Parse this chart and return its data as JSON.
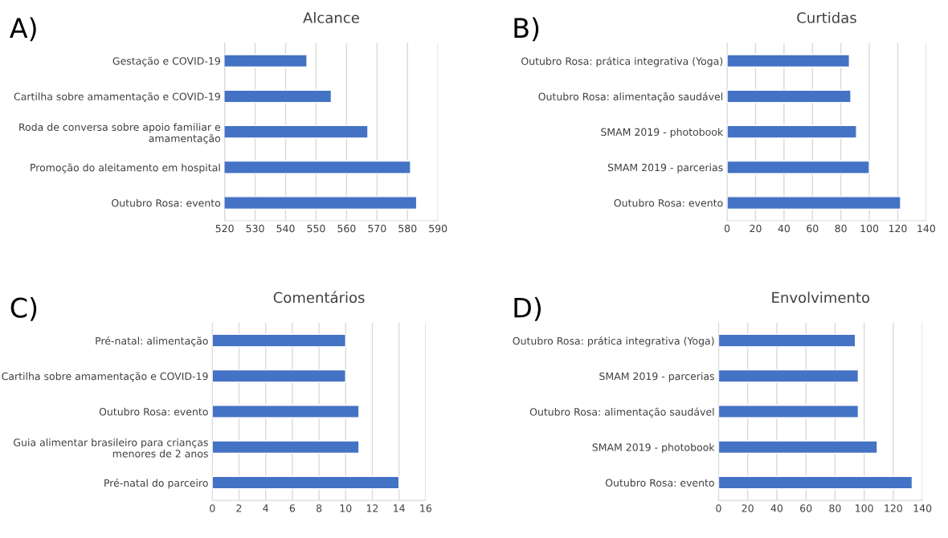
{
  "chart_data": [
    {
      "type": "bar",
      "orientation": "horizontal",
      "title": "Alcance",
      "annotations": [
        "A)"
      ],
      "categories": [
        "Gestação e COVID-19",
        "Cartilha sobre amamentação e COVID-19",
        "Roda de conversa sobre apoio familiar e amamentação",
        "Promoção do aleitamento em hospital",
        "Outubro Rosa: evento"
      ],
      "values": [
        547,
        555,
        567,
        581,
        583
      ],
      "color": "#4472c4",
      "xlim": [
        520,
        590
      ],
      "xticks": [
        520,
        530,
        540,
        550,
        560,
        570,
        580,
        590
      ],
      "grid": "x"
    },
    {
      "type": "bar",
      "orientation": "horizontal",
      "title": "Curtidas",
      "annotations": [
        "B)"
      ],
      "categories": [
        "Outubro Rosa: prática integrativa (Yoga)",
        "Outubro Rosa: alimentação saudável",
        "SMAM 2019 - photobook",
        "SMAM 2019 - parcerias",
        "Outubro Rosa: evento"
      ],
      "values": [
        86,
        87,
        91,
        100,
        122
      ],
      "color": "#4472c4",
      "xlim": [
        0,
        140
      ],
      "xticks": [
        0,
        20,
        40,
        60,
        80,
        100,
        120,
        140
      ],
      "grid": "x"
    },
    {
      "type": "bar",
      "orientation": "horizontal",
      "title": "Comentários",
      "annotations": [
        "C)"
      ],
      "categories": [
        "Pré-natal: alimentação",
        "Cartilha sobre amamentação e COVID-19",
        "Outubro Rosa: evento",
        "Guia alimentar brasileiro para crianças menores de 2 anos",
        "Pré-natal do parceiro"
      ],
      "values": [
        10,
        10,
        11,
        11,
        14
      ],
      "color": "#4472c4",
      "xlim": [
        0,
        16
      ],
      "xticks": [
        0,
        2,
        4,
        6,
        8,
        10,
        12,
        14,
        16
      ],
      "grid": "x"
    },
    {
      "type": "bar",
      "orientation": "horizontal",
      "title": "Envolvimento",
      "annotations": [
        "D)"
      ],
      "categories": [
        "Outubro Rosa: prática integrativa (Yoga)",
        "SMAM 2019 - parcerias",
        "Outubro Rosa: alimentação saudável",
        "SMAM 2019 - photobook",
        "Outubro Rosa: evento"
      ],
      "values": [
        94,
        96,
        96,
        109,
        133
      ],
      "color": "#4472c4",
      "xlim": [
        0,
        140
      ],
      "xticks": [
        0,
        20,
        40,
        60,
        80,
        100,
        120,
        140
      ],
      "grid": "x"
    }
  ]
}
